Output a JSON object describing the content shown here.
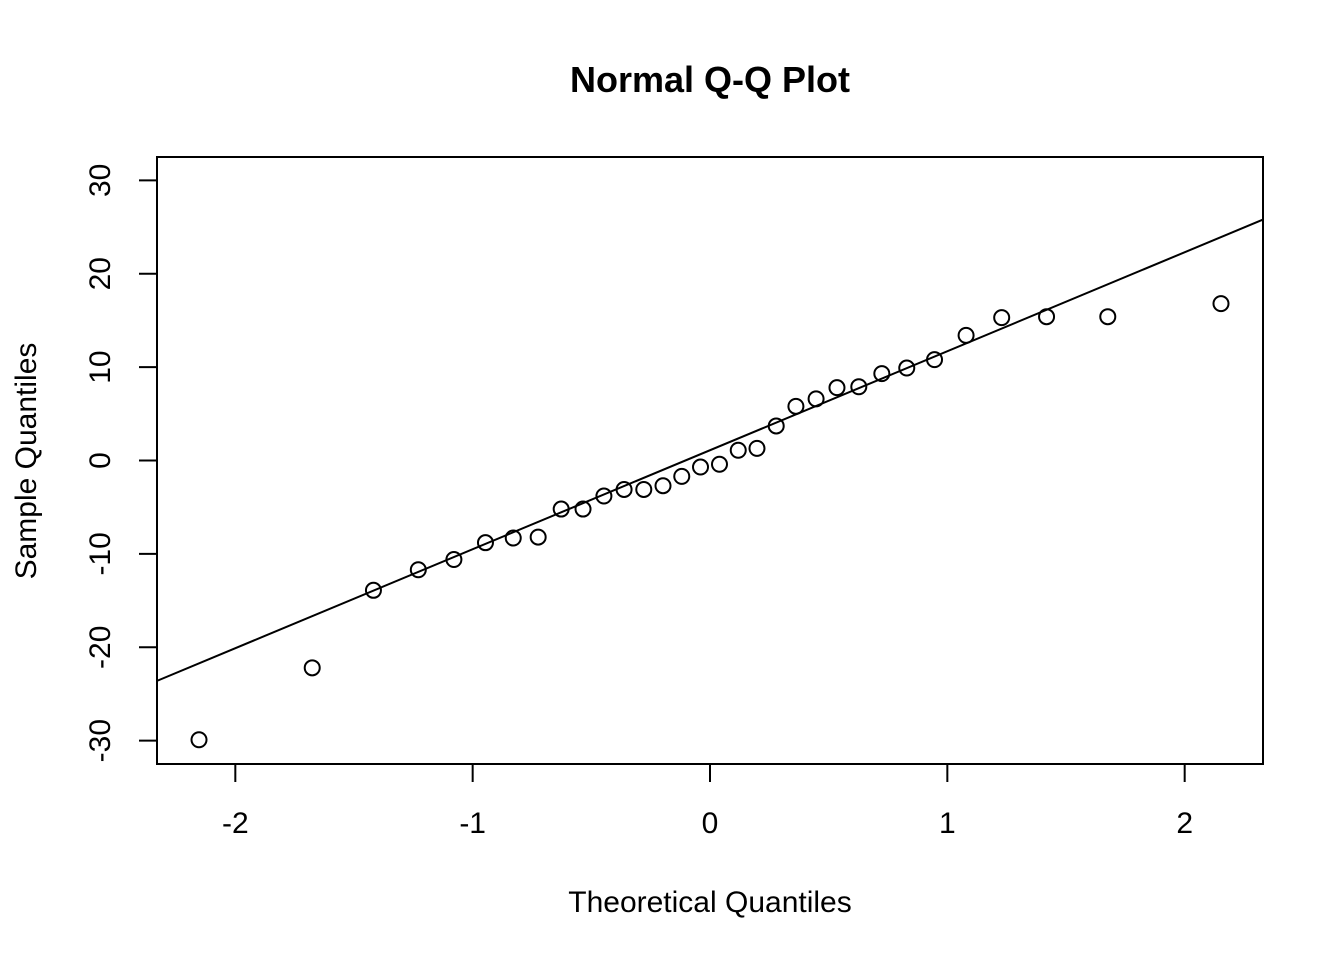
{
  "chart_data": {
    "type": "scatter",
    "title": "Normal Q-Q Plot",
    "xlabel": "Theoretical Quantiles",
    "ylabel": "Sample Quantiles",
    "xlim": [
      -2.33,
      2.33
    ],
    "ylim": [
      -32.5,
      32.5
    ],
    "x_ticks": [
      -2,
      -1,
      0,
      1,
      2
    ],
    "x_tick_labels": [
      "-2",
      "-1",
      "0",
      "1",
      "2"
    ],
    "y_ticks": [
      -30,
      -20,
      -10,
      0,
      10,
      20,
      30
    ],
    "y_tick_labels": [
      "-30",
      "-20",
      "-10",
      "0",
      "10",
      "20",
      "30"
    ],
    "grid": false,
    "qq_line": {
      "slope": 10.6,
      "intercept": 1.1
    },
    "points": {
      "x": [
        -2.153,
        -1.676,
        -1.418,
        -1.229,
        -1.079,
        -0.946,
        -0.829,
        -0.724,
        -0.627,
        -0.535,
        -0.447,
        -0.362,
        -0.279,
        -0.198,
        -0.119,
        -0.04,
        0.04,
        0.119,
        0.198,
        0.279,
        0.362,
        0.447,
        0.535,
        0.627,
        0.724,
        0.829,
        0.946,
        1.079,
        1.229,
        1.418,
        1.676,
        2.153
      ],
      "y": [
        -29.9,
        -22.2,
        -13.9,
        -11.7,
        -10.6,
        -8.8,
        -8.3,
        -8.2,
        -5.2,
        -5.2,
        -3.8,
        -3.1,
        -3.1,
        -2.7,
        -1.7,
        -0.7,
        -0.4,
        1.1,
        1.3,
        3.7,
        5.8,
        6.6,
        7.8,
        7.9,
        9.3,
        9.9,
        10.8,
        13.4,
        15.3,
        15.4,
        15.4,
        16.8
      ]
    }
  }
}
